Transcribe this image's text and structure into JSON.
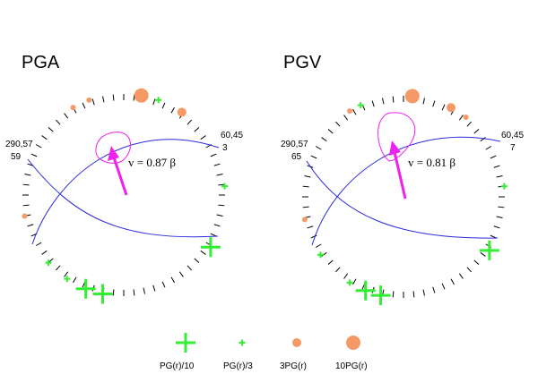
{
  "colors": {
    "green": "#33ee33",
    "orange": "#f59a66",
    "magenta": "#ee22ee",
    "blue": "#2a2add",
    "ticks": "#000000"
  },
  "panels": [
    {
      "title": "PGA",
      "left_label": [
        "290,57",
        "59"
      ],
      "right_label": [
        "60,45",
        "3"
      ],
      "vector_label": "v = 0.87 β",
      "symbols": [
        {
          "kind": "orange_large",
          "az": 10
        },
        {
          "kind": "orange_medium",
          "az": 35
        },
        {
          "kind": "green_small",
          "az": 20
        },
        {
          "kind": "orange_small",
          "az": -20
        },
        {
          "kind": "orange_small",
          "az": -30
        },
        {
          "kind": "green_small",
          "az": 85
        },
        {
          "kind": "orange_small",
          "az": -102
        },
        {
          "kind": "green_small",
          "az": -132
        },
        {
          "kind": "green_small",
          "az": -146
        },
        {
          "kind": "green_large",
          "az": 121
        },
        {
          "kind": "green_large",
          "az": 192
        },
        {
          "kind": "green_large",
          "az": 202
        }
      ]
    },
    {
      "title": "PGV",
      "left_label": [
        "290,57",
        "65"
      ],
      "right_label": [
        "60,45",
        "7"
      ],
      "vector_label": "v = 0.81 β",
      "symbols": [
        {
          "kind": "orange_large",
          "az": 5
        },
        {
          "kind": "orange_medium",
          "az": 28
        },
        {
          "kind": "orange_small",
          "az": 38
        },
        {
          "kind": "green_small",
          "az": -25
        },
        {
          "kind": "orange_small",
          "az": -32
        },
        {
          "kind": "green_small",
          "az": 84
        },
        {
          "kind": "orange_small",
          "az": -103
        },
        {
          "kind": "green_small",
          "az": -125
        },
        {
          "kind": "green_small",
          "az": -148
        },
        {
          "kind": "green_large",
          "az": 122
        },
        {
          "kind": "green_large",
          "az": 193
        },
        {
          "kind": "green_large",
          "az": 202
        }
      ]
    }
  ],
  "legend": [
    {
      "kind": "green_large",
      "label": "PG(r)/10"
    },
    {
      "kind": "green_small",
      "label": "PG(r)/3"
    },
    {
      "kind": "orange_medium",
      "label": "3PG(r)"
    },
    {
      "kind": "orange_large",
      "label": "10PG(r)"
    }
  ]
}
